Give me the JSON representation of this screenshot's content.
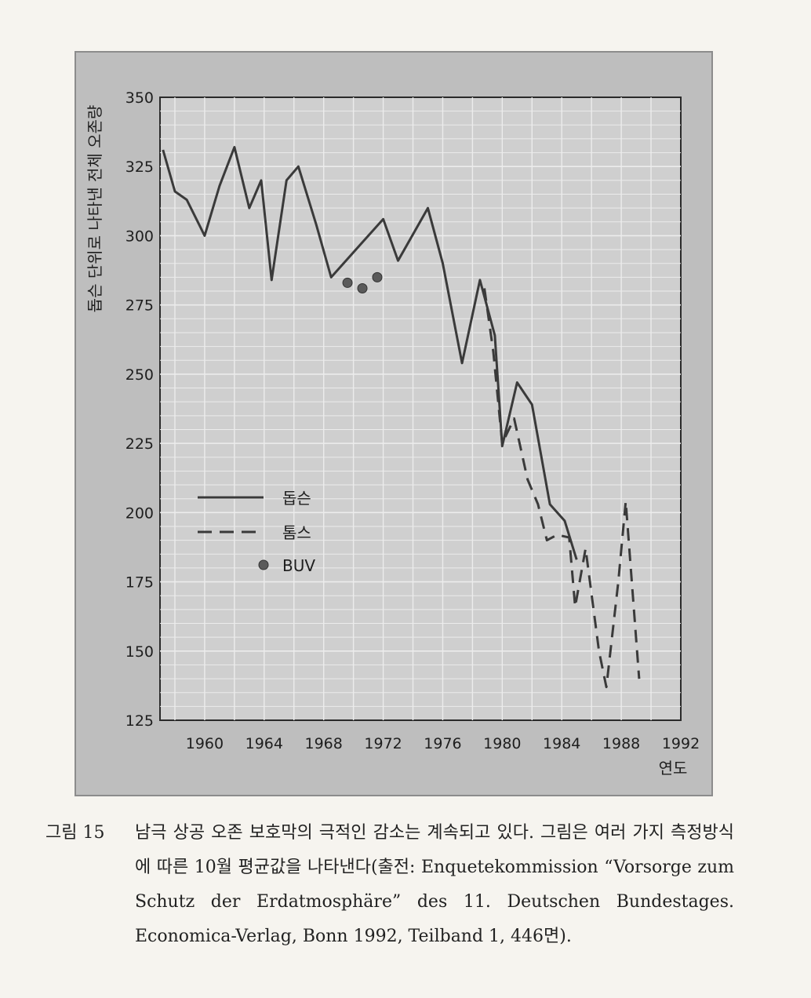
{
  "chart_data": {
    "type": "line",
    "ylabel": "돕슨 단위로 나타낸 전체 오존량",
    "xlabel": "연도",
    "xlim": [
      1957,
      1992
    ],
    "ylim": [
      125,
      350
    ],
    "x_ticks": [
      1960,
      1964,
      1968,
      1972,
      1976,
      1980,
      1984,
      1988,
      1992
    ],
    "y_ticks": [
      125,
      150,
      175,
      200,
      225,
      250,
      275,
      300,
      325,
      350
    ],
    "grid": true,
    "legend_position": "lower-left",
    "series": [
      {
        "name": "돕슨",
        "style": "solid",
        "x": [
          1957.2,
          1958,
          1958.8,
          1960,
          1961,
          1962,
          1963,
          1963.8,
          1964.5,
          1965.5,
          1966.3,
          1967.5,
          1968.5,
          1970.5,
          1972,
          1973,
          1975,
          1976,
          1977.3,
          1978.5,
          1979.5,
          1980,
          1981,
          1982,
          1983.2,
          1984.2,
          1985
        ],
        "y": [
          331,
          316,
          313,
          300,
          318,
          332,
          310,
          320,
          284,
          320,
          325,
          304,
          285,
          297,
          306,
          291,
          310,
          290,
          254,
          284,
          264,
          224,
          247,
          239,
          203,
          197,
          183
        ]
      },
      {
        "name": "톰스",
        "style": "dashed",
        "x": [
          1978.8,
          1979.4,
          1980,
          1980.8,
          1981.7,
          1982.4,
          1983,
          1983.7,
          1984.5,
          1984.9,
          1985.6,
          1986.5,
          1987,
          1987.8,
          1988.3,
          1989.2
        ],
        "y": [
          281,
          258,
          225,
          234,
          212,
          203,
          190,
          192,
          191,
          166,
          187,
          150,
          137,
          175,
          204,
          140
        ]
      },
      {
        "name": "BUV",
        "style": "marker",
        "x": [
          1969.6,
          1970.6,
          1971.6
        ],
        "y": [
          283,
          281,
          285
        ]
      }
    ]
  },
  "caption": {
    "label": "그림 15",
    "text": "남극 상공 오존 보호막의 극적인 감소는 계속되고 있다. 그림은 여러 가지 측정방식에 따른 10월 평균값을 나타낸다(출전: Enquetekommission “Vorsorge zum Schutz der Erdatmosphäre” des 11. Deutschen Bundestages. Economica-Verlag, Bonn 1992, Teilband 1, 446면)."
  },
  "colors": {
    "panel": "#bebebe",
    "plot_bg": "#cfcfcf",
    "grid": "#ececec",
    "line": "#3a3a3a",
    "marker": "#5a5a5a"
  }
}
